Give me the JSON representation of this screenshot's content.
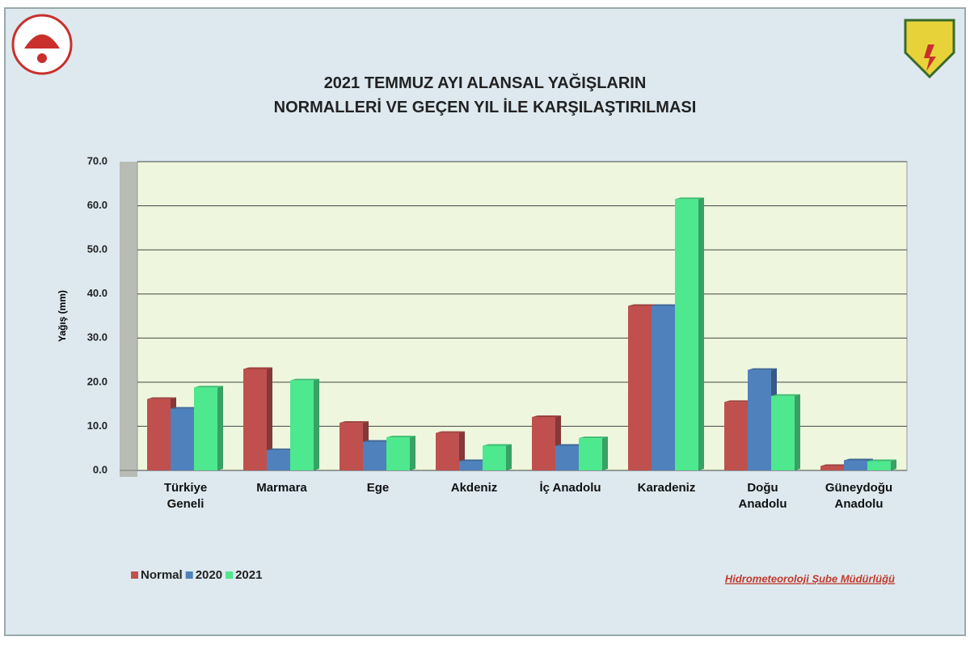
{
  "chart_data": {
    "type": "bar",
    "title": "2021 TEMMUZ AYI ALANSAL YAĞIŞLARIN\nNORMALLERİ VE GEÇEN YIL İLE KARŞILAŞTIRILMASI",
    "y_label": "Yağış (mm)",
    "categories": [
      "Türkiye\nGeneli",
      "Marmara",
      "Ege",
      "Akdeniz",
      "İç Anadolu",
      "Karadeniz",
      "Doğu\nAnadolu",
      "Güneydoğu\nAnadolu"
    ],
    "series": [
      {
        "name": "Normal",
        "color": "#c0504d",
        "values": [
          16.2,
          23.0,
          10.8,
          8.5,
          12.1,
          37.3,
          15.5,
          1.0
        ]
      },
      {
        "name": "2020",
        "color": "#4f81bd",
        "values": [
          14.0,
          4.6,
          6.5,
          2.1,
          5.6,
          37.3,
          22.8,
          2.3
        ]
      },
      {
        "name": "2021",
        "color": "#4ee88e",
        "values": [
          18.8,
          20.4,
          7.5,
          5.6,
          7.3,
          61.5,
          16.9,
          2.1
        ]
      }
    ],
    "ylim": [
      0,
      70
    ],
    "yticks": [
      {
        "value": 0,
        "label": "0.0"
      },
      {
        "value": 10,
        "label": "10.0"
      },
      {
        "value": 20,
        "label": "20.0"
      },
      {
        "value": 30,
        "label": "30.0"
      },
      {
        "value": 40,
        "label": "40.0"
      },
      {
        "value": 50,
        "label": "50.0"
      },
      {
        "value": 60,
        "label": "60.0"
      },
      {
        "value": 70,
        "label": "70.0"
      }
    ],
    "grid": true,
    "legend": "bottom-left",
    "footer": "Hidrometeoroloji Şube Müdürlüğü"
  }
}
